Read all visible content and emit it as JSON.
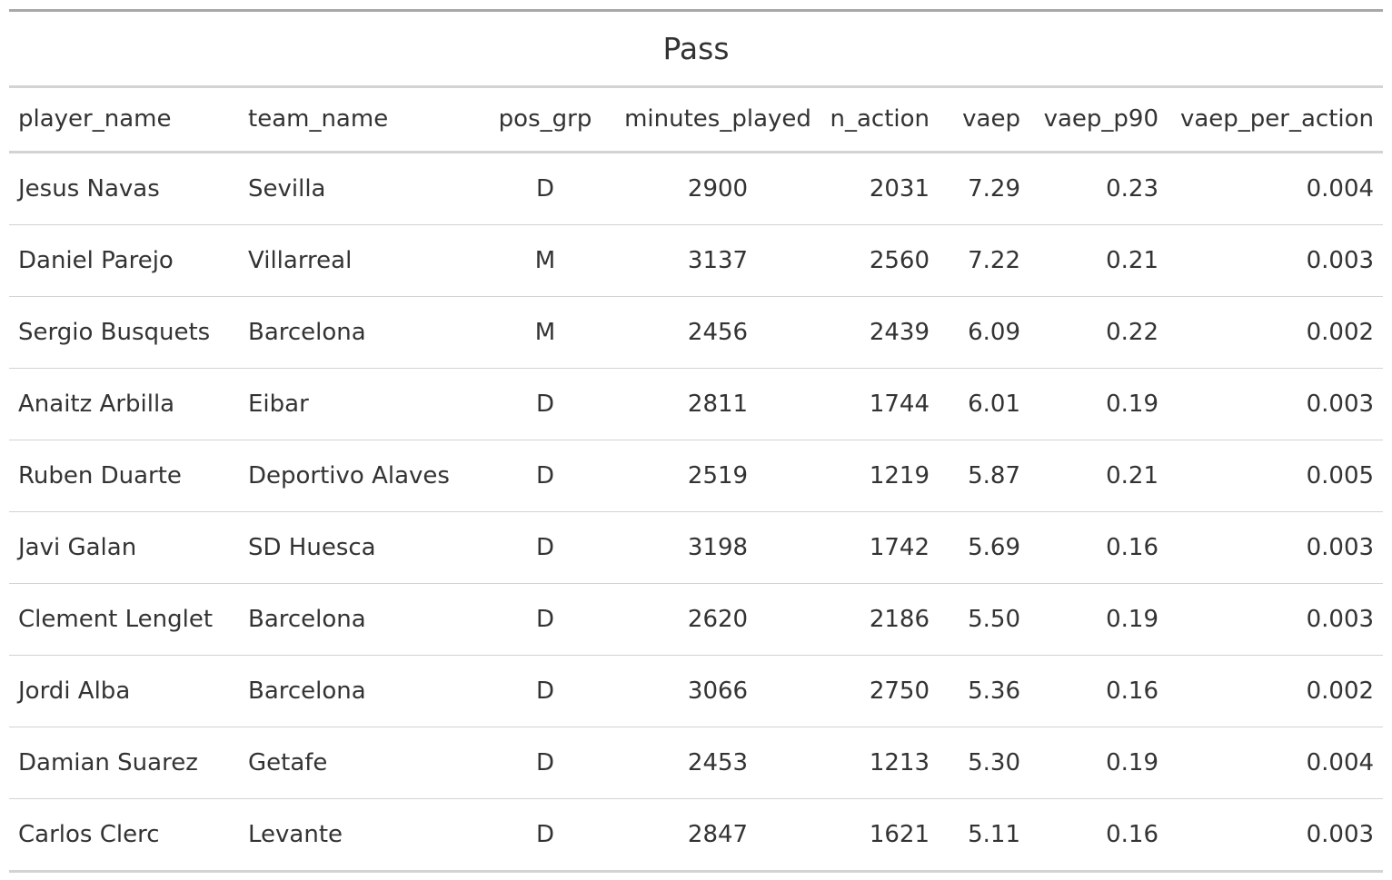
{
  "table": {
    "title": "Pass",
    "columns": [
      "player_name",
      "team_name",
      "pos_grp",
      "minutes_played",
      "n_action",
      "vaep",
      "vaep_p90",
      "vaep_per_action"
    ],
    "rows": [
      [
        "Jesus Navas",
        "Sevilla",
        "D",
        "2900",
        "2031",
        "7.29",
        "0.23",
        "0.004"
      ],
      [
        "Daniel Parejo",
        "Villarreal",
        "M",
        "3137",
        "2560",
        "7.22",
        "0.21",
        "0.003"
      ],
      [
        "Sergio Busquets",
        "Barcelona",
        "M",
        "2456",
        "2439",
        "6.09",
        "0.22",
        "0.002"
      ],
      [
        "Anaitz Arbilla",
        "Eibar",
        "D",
        "2811",
        "1744",
        "6.01",
        "0.19",
        "0.003"
      ],
      [
        "Ruben Duarte",
        "Deportivo Alaves",
        "D",
        "2519",
        "1219",
        "5.87",
        "0.21",
        "0.005"
      ],
      [
        "Javi Galan",
        "SD Huesca",
        "D",
        "3198",
        "1742",
        "5.69",
        "0.16",
        "0.003"
      ],
      [
        "Clement Lenglet",
        "Barcelona",
        "D",
        "2620",
        "2186",
        "5.50",
        "0.19",
        "0.003"
      ],
      [
        "Jordi Alba",
        "Barcelona",
        "D",
        "3066",
        "2750",
        "5.36",
        "0.16",
        "0.002"
      ],
      [
        "Damian Suarez",
        "Getafe",
        "D",
        "2453",
        "1213",
        "5.30",
        "0.19",
        "0.004"
      ],
      [
        "Carlos Clerc",
        "Levante",
        "D",
        "2847",
        "1621",
        "5.11",
        "0.16",
        "0.003"
      ]
    ]
  },
  "colors": {
    "text": "#333333",
    "rule_heavy": "#a8a8a8",
    "rule_light": "#d3d3d3"
  }
}
